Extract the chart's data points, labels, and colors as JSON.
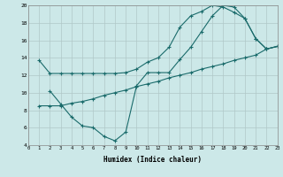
{
  "xlabel": "Humidex (Indice chaleur)",
  "bg_color": "#cce8e8",
  "grid_color": "#b0c8c8",
  "line_color": "#1a6b6b",
  "xlim": [
    0,
    23
  ],
  "ylim": [
    4,
    20
  ],
  "xticks": [
    0,
    1,
    2,
    3,
    4,
    5,
    6,
    7,
    8,
    9,
    10,
    11,
    12,
    13,
    14,
    15,
    16,
    17,
    18,
    19,
    20,
    21,
    22,
    23
  ],
  "yticks": [
    4,
    6,
    8,
    10,
    12,
    14,
    16,
    18,
    20
  ],
  "line1_x": [
    1,
    2,
    3,
    4,
    5,
    6,
    7,
    8,
    9,
    10,
    11,
    12,
    13,
    14,
    15,
    16,
    17,
    18,
    19,
    20,
    21,
    22,
    23
  ],
  "line1_y": [
    13.7,
    12.2,
    12.2,
    12.2,
    12.2,
    12.2,
    12.2,
    12.2,
    12.3,
    12.7,
    13.5,
    14.0,
    15.2,
    17.5,
    18.8,
    19.3,
    20.0,
    19.8,
    19.2,
    18.5,
    16.2,
    15.0,
    15.3
  ],
  "line2_x": [
    2,
    3,
    4,
    5,
    6,
    7,
    8,
    9,
    10,
    11,
    12,
    13,
    14,
    15,
    16,
    17,
    18,
    19,
    20,
    21,
    22,
    23
  ],
  "line2_y": [
    10.2,
    8.7,
    7.2,
    6.2,
    6.0,
    5.0,
    4.5,
    5.5,
    10.8,
    12.3,
    12.3,
    12.3,
    13.8,
    15.2,
    17.0,
    18.8,
    20.0,
    19.8,
    18.5,
    16.2,
    15.0,
    15.3
  ],
  "line3_x": [
    1,
    2,
    3,
    4,
    5,
    6,
    7,
    8,
    9,
    10,
    11,
    12,
    13,
    14,
    15,
    16,
    17,
    18,
    19,
    20,
    21,
    22,
    23
  ],
  "line3_y": [
    8.5,
    8.5,
    8.5,
    8.8,
    9.0,
    9.3,
    9.7,
    10.0,
    10.3,
    10.7,
    11.0,
    11.3,
    11.7,
    12.0,
    12.3,
    12.7,
    13.0,
    13.3,
    13.7,
    14.0,
    14.3,
    15.0,
    15.3
  ]
}
